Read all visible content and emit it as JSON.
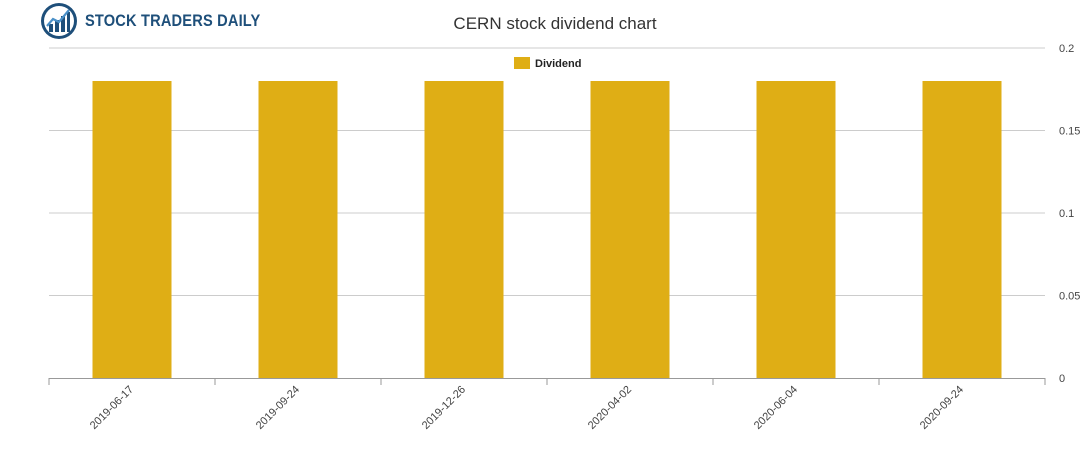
{
  "brand": {
    "name": "STOCK TRADERS DAILY",
    "logo_icon": "bar-chart-globe-icon"
  },
  "colors": {
    "bar": "#dfae15",
    "grid": "#cccccc",
    "axis": "#999999",
    "brand": "#1e4f7a"
  },
  "chart_data": {
    "type": "bar",
    "title": "CERN stock dividend chart",
    "categories": [
      "2019-06-17",
      "2019-09-24",
      "2019-12-26",
      "2020-04-02",
      "2020-06-04",
      "2020-09-24"
    ],
    "series": [
      {
        "name": "Dividend",
        "values": [
          0.18,
          0.18,
          0.18,
          0.18,
          0.18,
          0.18
        ]
      }
    ],
    "xlabel": "",
    "ylabel": "",
    "ylim": [
      0,
      0.2
    ],
    "yticks": [
      0,
      0.05,
      0.1,
      0.15,
      0.2
    ],
    "y_axis_side": "right",
    "grid": true,
    "legend": "top-center"
  }
}
